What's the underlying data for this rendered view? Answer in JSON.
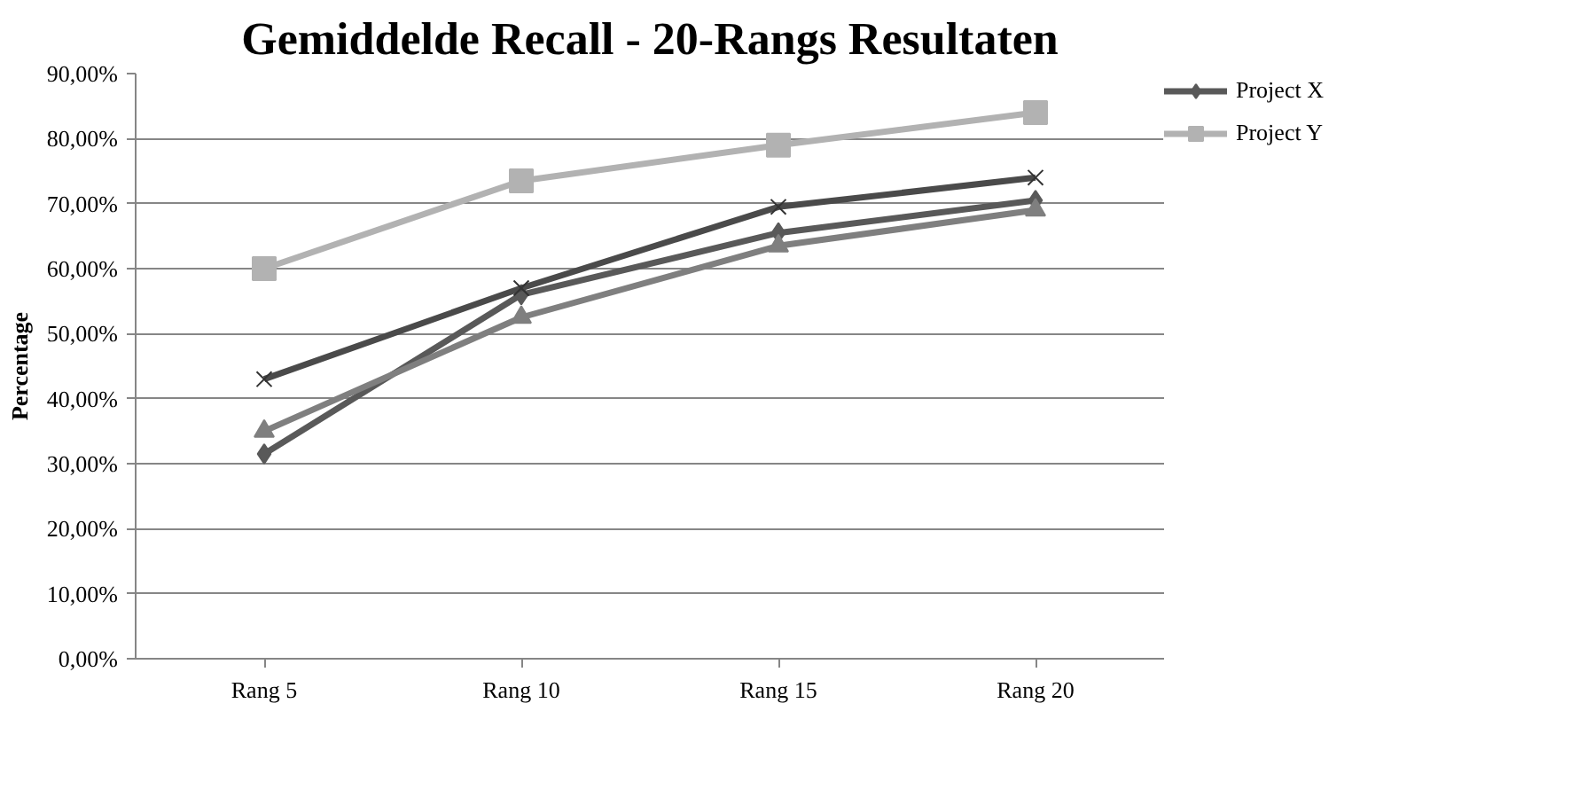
{
  "chart_data": {
    "type": "line",
    "title": "Gemiddelde Recall - 20-Rangs Resultaten",
    "ylabel": "Percentage",
    "categories": [
      "Rang 5",
      "Rang 10",
      "Rang 15",
      "Rang 20"
    ],
    "series": [
      {
        "name": "Project X",
        "color": "#595959",
        "marker": "diamond",
        "values": [
          31.5,
          56,
          65.5,
          70.5
        ]
      },
      {
        "name": "Project Y",
        "color": "#b2b2b2",
        "marker": "square",
        "values": [
          60,
          73.5,
          79,
          84
        ]
      },
      {
        "color": "#7f7f7f",
        "marker": "triangle",
        "values": [
          35,
          52.5,
          63.5,
          69
        ]
      },
      {
        "color": "#4a4a4a",
        "marker": "cross",
        "values": [
          43,
          57,
          69.5,
          74
        ]
      }
    ],
    "ylim": [
      0,
      90
    ],
    "yticks": [
      {
        "value": 0,
        "label": "0,00%"
      },
      {
        "value": 10,
        "label": "10,00%"
      },
      {
        "value": 20,
        "label": "20,00%"
      },
      {
        "value": 30,
        "label": "30,00%"
      },
      {
        "value": 40,
        "label": "40,00%"
      },
      {
        "value": 50,
        "label": "50,00%"
      },
      {
        "value": 60,
        "label": "60,00%"
      },
      {
        "value": 70,
        "label": "70,00%"
      },
      {
        "value": 80,
        "label": "80,00%"
      },
      {
        "value": 90,
        "label": "90,00%"
      }
    ],
    "grid": "y",
    "legend": "right"
  }
}
